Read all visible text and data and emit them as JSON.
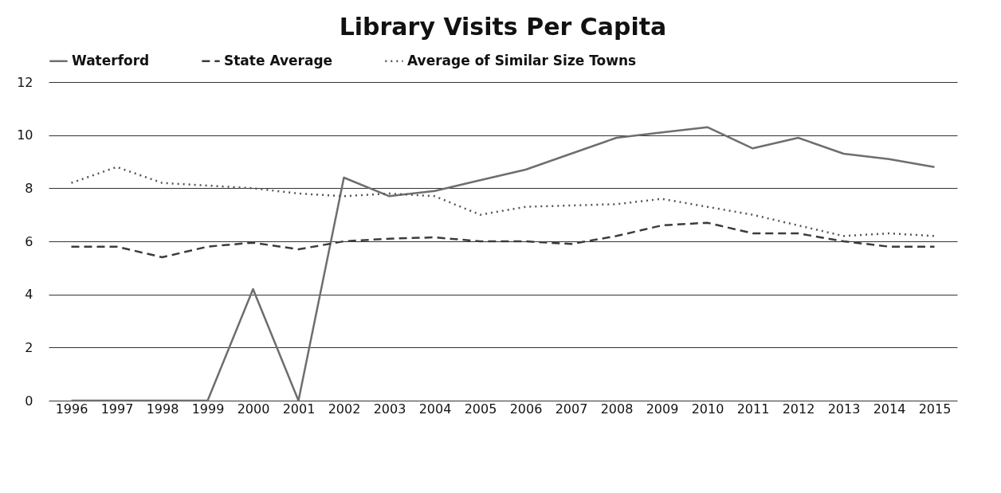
{
  "chart_data": {
    "type": "line",
    "title": "Library Visits Per Capita",
    "categories": [
      "1996",
      "1997",
      "1998",
      "1999",
      "2000",
      "2001",
      "2002",
      "2003",
      "2004",
      "2005",
      "2006",
      "2007",
      "2008",
      "2009",
      "2010",
      "2011",
      "2012",
      "2013",
      "2014",
      "2015"
    ],
    "series": [
      {
        "name": "Waterford",
        "color": "#6e6e6e",
        "line_style": "solid",
        "values": [
          0,
          0,
          0,
          0,
          4.2,
          0,
          8.4,
          7.7,
          7.9,
          8.3,
          8.7,
          9.3,
          9.9,
          10.1,
          10.3,
          9.5,
          9.9,
          9.3,
          9.1,
          8.8
        ]
      },
      {
        "name": "State Average",
        "color": "#3c3c3c",
        "line_style": "dashed",
        "values": [
          5.8,
          5.8,
          5.4,
          5.8,
          5.95,
          5.7,
          6.0,
          6.1,
          6.15,
          6.0,
          6.0,
          5.9,
          6.2,
          6.6,
          6.7,
          6.3,
          6.3,
          6.0,
          5.8,
          5.8
        ]
      },
      {
        "name": "Average of Similar Size Towns",
        "color": "#555555",
        "line_style": "dotted",
        "values": [
          8.2,
          8.8,
          8.2,
          8.1,
          8.0,
          7.8,
          7.7,
          7.8,
          7.7,
          7.0,
          7.3,
          7.35,
          7.4,
          7.6,
          7.3,
          7.0,
          6.6,
          6.2,
          6.3,
          6.2
        ]
      }
    ],
    "ylim": [
      0,
      12
    ],
    "yticks": [
      0,
      2,
      4,
      6,
      8,
      10,
      12
    ],
    "grid": "y",
    "legend": "top",
    "marker": "none"
  }
}
